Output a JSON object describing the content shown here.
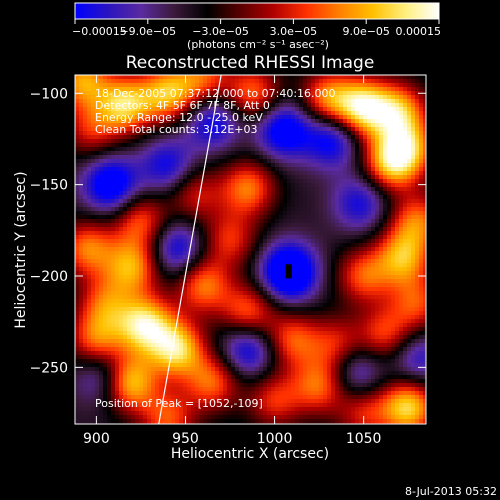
{
  "chart_data": {
    "type": "heatmap",
    "title": "Reconstructed RHESSI Image",
    "xlabel": "Heliocentric X (arcsec)",
    "ylabel": "Heliocentric Y (arcsec)",
    "xlim": [
      888,
      1085
    ],
    "ylim": [
      -281,
      -90
    ],
    "x_ticks": [
      {
        "value": 900,
        "label": "900"
      },
      {
        "value": 950,
        "label": "950"
      },
      {
        "value": 1000,
        "label": "1000"
      },
      {
        "value": 1050,
        "label": "1050"
      }
    ],
    "y_ticks": [
      {
        "value": -100,
        "label": "−100"
      },
      {
        "value": -150,
        "label": "−150"
      },
      {
        "value": -200,
        "label": "−200"
      },
      {
        "value": -250,
        "label": "−250"
      }
    ],
    "annotations": [
      "18-Dec-2005 07:37:12.000 to 07:40:16.000",
      "Detectors: 4F 5F 6F 7F 8F, Att 0",
      "Energy Range: 12.0 - 25.0 keV",
      "Clean     Total counts: 3.12E+03"
    ],
    "peak_label": "Position of Peak = [1052,-109]",
    "colorbar": {
      "range": [
        -0.00015,
        0.00015
      ],
      "labels": [
        {
          "value": -0.00015,
          "label": "−0.00015"
        },
        {
          "value": -9e-05,
          "label": "−9.0e−05"
        },
        {
          "value": -3e-05,
          "label": "−3.0e−05"
        },
        {
          "value": 3e-05,
          "label": "3.0e−05"
        },
        {
          "value": 9e-05,
          "label": "9.0e−05"
        },
        {
          "value": 0.00015,
          "label": "0.00015"
        }
      ],
      "unit_label": "(photons cm⁻² s⁻¹ asec⁻²)",
      "stops": [
        "#0000ff",
        "#2a14c0",
        "#5a2aa0",
        "#3a1a3a",
        "#000000",
        "#5a0000",
        "#b00000",
        "#ff3000",
        "#ff8000",
        "#ffc000",
        "#fff080",
        "#ffffff"
      ]
    },
    "limb_line": [
      [
        970,
        -90
      ],
      [
        935,
        -281
      ]
    ],
    "blobs": [
      {
        "x": 892,
        "y": -93,
        "v": 0.7
      },
      {
        "x": 916,
        "y": -106,
        "v": 0.85
      },
      {
        "x": 940,
        "y": -100,
        "v": 0.75
      },
      {
        "x": 960,
        "y": -92,
        "v": 0.5
      },
      {
        "x": 988,
        "y": -100,
        "v": 0.55
      },
      {
        "x": 1030,
        "y": -103,
        "v": 0.65
      },
      {
        "x": 1050,
        "y": -108,
        "v": 1.0
      },
      {
        "x": 1070,
        "y": -110,
        "v": 0.7
      },
      {
        "x": 1032,
        "y": -125,
        "v": -0.6
      },
      {
        "x": 1065,
        "y": -138,
        "v": 0.75
      },
      {
        "x": 1075,
        "y": -130,
        "v": 0.6
      },
      {
        "x": 897,
        "y": -120,
        "v": 0.35
      },
      {
        "x": 965,
        "y": -115,
        "v": -0.55
      },
      {
        "x": 1005,
        "y": -120,
        "v": -0.7
      },
      {
        "x": 908,
        "y": -150,
        "v": -0.75
      },
      {
        "x": 940,
        "y": -140,
        "v": -0.5
      },
      {
        "x": 985,
        "y": -152,
        "v": 0.6
      },
      {
        "x": 955,
        "y": -155,
        "v": 0.35
      },
      {
        "x": 1048,
        "y": -160,
        "v": -0.45
      },
      {
        "x": 1080,
        "y": -170,
        "v": 0.55
      },
      {
        "x": 925,
        "y": -170,
        "v": 0.5
      },
      {
        "x": 895,
        "y": -185,
        "v": 0.6
      },
      {
        "x": 920,
        "y": -195,
        "v": 0.7
      },
      {
        "x": 945,
        "y": -185,
        "v": -0.55
      },
      {
        "x": 960,
        "y": -205,
        "v": 0.6
      },
      {
        "x": 975,
        "y": -180,
        "v": 0.4
      },
      {
        "x": 1008,
        "y": -198,
        "v": -1.0
      },
      {
        "x": 1050,
        "y": -200,
        "v": 0.5
      },
      {
        "x": 1072,
        "y": -190,
        "v": 0.7
      },
      {
        "x": 1080,
        "y": -215,
        "v": 0.45
      },
      {
        "x": 905,
        "y": -215,
        "v": 0.45
      },
      {
        "x": 900,
        "y": -235,
        "v": 0.55
      },
      {
        "x": 925,
        "y": -228,
        "v": 0.5
      },
      {
        "x": 945,
        "y": -240,
        "v": 0.9
      },
      {
        "x": 930,
        "y": -225,
        "v": 0.3
      },
      {
        "x": 985,
        "y": -220,
        "v": 0.55
      },
      {
        "x": 985,
        "y": -240,
        "v": -0.6
      },
      {
        "x": 1010,
        "y": -235,
        "v": 0.5
      },
      {
        "x": 1035,
        "y": -238,
        "v": 0.4
      },
      {
        "x": 1062,
        "y": -232,
        "v": 0.45
      },
      {
        "x": 1080,
        "y": -245,
        "v": -0.4
      },
      {
        "x": 905,
        "y": -255,
        "v": -0.5
      },
      {
        "x": 918,
        "y": -258,
        "v": 0.95
      },
      {
        "x": 965,
        "y": -258,
        "v": 0.55
      },
      {
        "x": 1025,
        "y": -260,
        "v": 0.55
      },
      {
        "x": 1045,
        "y": -252,
        "v": -0.45
      },
      {
        "x": 1000,
        "y": -268,
        "v": 0.4
      },
      {
        "x": 1075,
        "y": -272,
        "v": 0.9
      },
      {
        "x": 1050,
        "y": -275,
        "v": 0.35
      },
      {
        "x": 940,
        "y": -278,
        "v": 0.5
      }
    ]
  },
  "footer": {
    "timestamp": "8-Jul-2013 05:32"
  }
}
